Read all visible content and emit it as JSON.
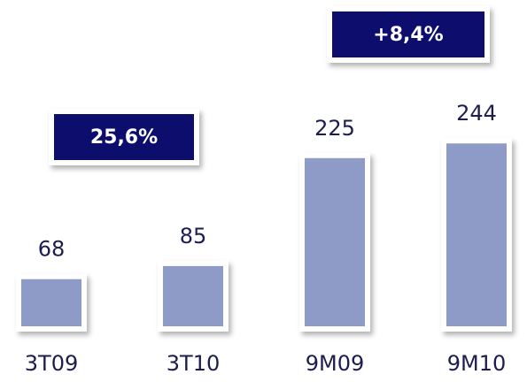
{
  "chart_data": {
    "type": "bar",
    "categories": [
      "3T09",
      "3T10",
      "9M09",
      "9M10"
    ],
    "values": [
      68,
      85,
      225,
      244
    ],
    "color": "#8e9bc6",
    "annotations": [
      "25,6%",
      "+8,4%"
    ]
  }
}
